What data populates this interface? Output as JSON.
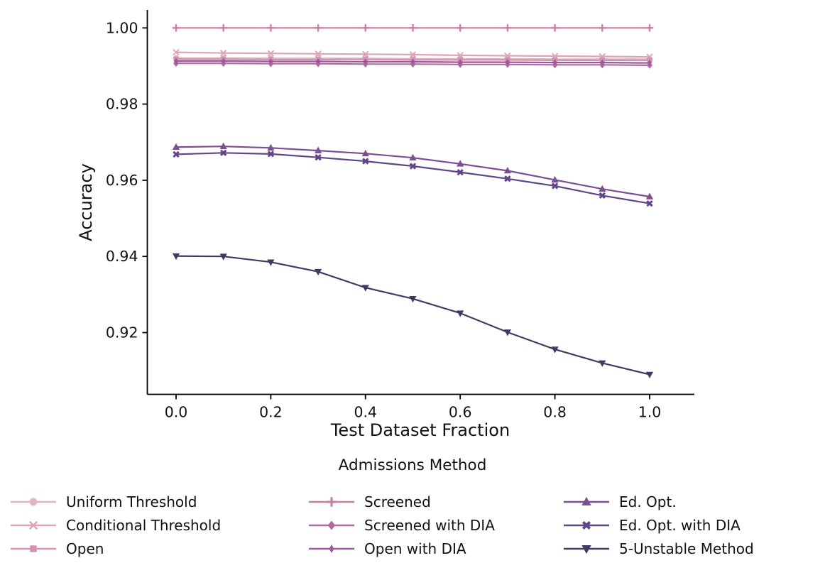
{
  "chart_data": {
    "type": "line",
    "title": "",
    "xlabel": "Test Dataset Fraction",
    "ylabel": "Accuracy",
    "legend_title": "Admissions Method",
    "legend_position": "bottom",
    "legend_columns": 3,
    "grid": false,
    "x": [
      0.0,
      0.1,
      0.2,
      0.3,
      0.4,
      0.5,
      0.6,
      0.7,
      0.8,
      0.9,
      1.0
    ],
    "xlim": [
      -0.0615,
      1.0944
    ],
    "ylim": [
      0.9037,
      1.0047
    ],
    "xticks": [
      {
        "v": 0.0,
        "label": "0.0"
      },
      {
        "v": 0.2,
        "label": "0.2"
      },
      {
        "v": 0.4,
        "label": "0.4"
      },
      {
        "v": 0.6,
        "label": "0.6"
      },
      {
        "v": 0.8,
        "label": "0.8"
      },
      {
        "v": 1.0,
        "label": "1.0"
      }
    ],
    "yticks": [
      {
        "v": 1.0,
        "label": "1.00"
      },
      {
        "v": 0.98,
        "label": "0.98"
      },
      {
        "v": 0.96,
        "label": "0.96"
      },
      {
        "v": 0.94,
        "label": "0.94"
      },
      {
        "v": 0.92,
        "label": "0.92"
      }
    ],
    "series": [
      {
        "name": "Uniform Threshold",
        "marker": "circle",
        "color": "#e3b3c3",
        "values": [
          0.9921,
          0.9921,
          0.992,
          0.992,
          0.992,
          0.9919,
          0.9919,
          0.9919,
          0.9918,
          0.9918,
          0.9918
        ]
      },
      {
        "name": "Conditional Threshold",
        "marker": "x",
        "color": "#dda3ba",
        "values": [
          0.9936,
          0.9934,
          0.9933,
          0.9932,
          0.9931,
          0.993,
          0.9928,
          0.9927,
          0.9926,
          0.9925,
          0.9924
        ]
      },
      {
        "name": "Open",
        "marker": "square",
        "color": "#d391b0",
        "values": [
          0.9918,
          0.9918,
          0.9917,
          0.9917,
          0.9917,
          0.9916,
          0.9916,
          0.9916,
          0.9915,
          0.9915,
          0.9915
        ]
      },
      {
        "name": "Screened",
        "marker": "plus",
        "color": "#c67ea8",
        "values": [
          1.0,
          1.0,
          1.0,
          1.0,
          1.0,
          1.0,
          1.0,
          1.0,
          1.0,
          1.0,
          1.0
        ]
      },
      {
        "name": "Screened with DIA",
        "marker": "diamond",
        "color": "#b169a1",
        "values": [
          0.9907,
          0.9907,
          0.9906,
          0.9906,
          0.9905,
          0.9905,
          0.9904,
          0.9904,
          0.9903,
          0.9903,
          0.9902
        ]
      },
      {
        "name": "Open with DIA",
        "marker": "thin-diamond",
        "color": "#985a9a",
        "values": [
          0.9913,
          0.9913,
          0.9912,
          0.9912,
          0.9911,
          0.9911,
          0.991,
          0.991,
          0.9909,
          0.9909,
          0.9908
        ]
      },
      {
        "name": "Ed. Opt.",
        "marker": "triangle-up",
        "color": "#7c4e92",
        "values": [
          0.9687,
          0.9689,
          0.9685,
          0.9678,
          0.967,
          0.9659,
          0.9643,
          0.9625,
          0.9601,
          0.9577,
          0.9557
        ]
      },
      {
        "name": "Ed. Opt. with DIA",
        "marker": "x-bold",
        "color": "#614589",
        "values": [
          0.9668,
          0.9672,
          0.9669,
          0.966,
          0.965,
          0.9637,
          0.9621,
          0.9604,
          0.9585,
          0.956,
          0.9539
        ]
      },
      {
        "name": "5-Unstable Method",
        "marker": "triangle-down",
        "color": "#413a63",
        "values": [
          0.9401,
          0.94,
          0.9385,
          0.936,
          0.9318,
          0.9289,
          0.9251,
          0.9201,
          0.9156,
          0.912,
          0.909
        ]
      }
    ]
  },
  "style": {
    "spine_color": "#000000",
    "text_color": "#111111",
    "background": "#ffffff"
  }
}
